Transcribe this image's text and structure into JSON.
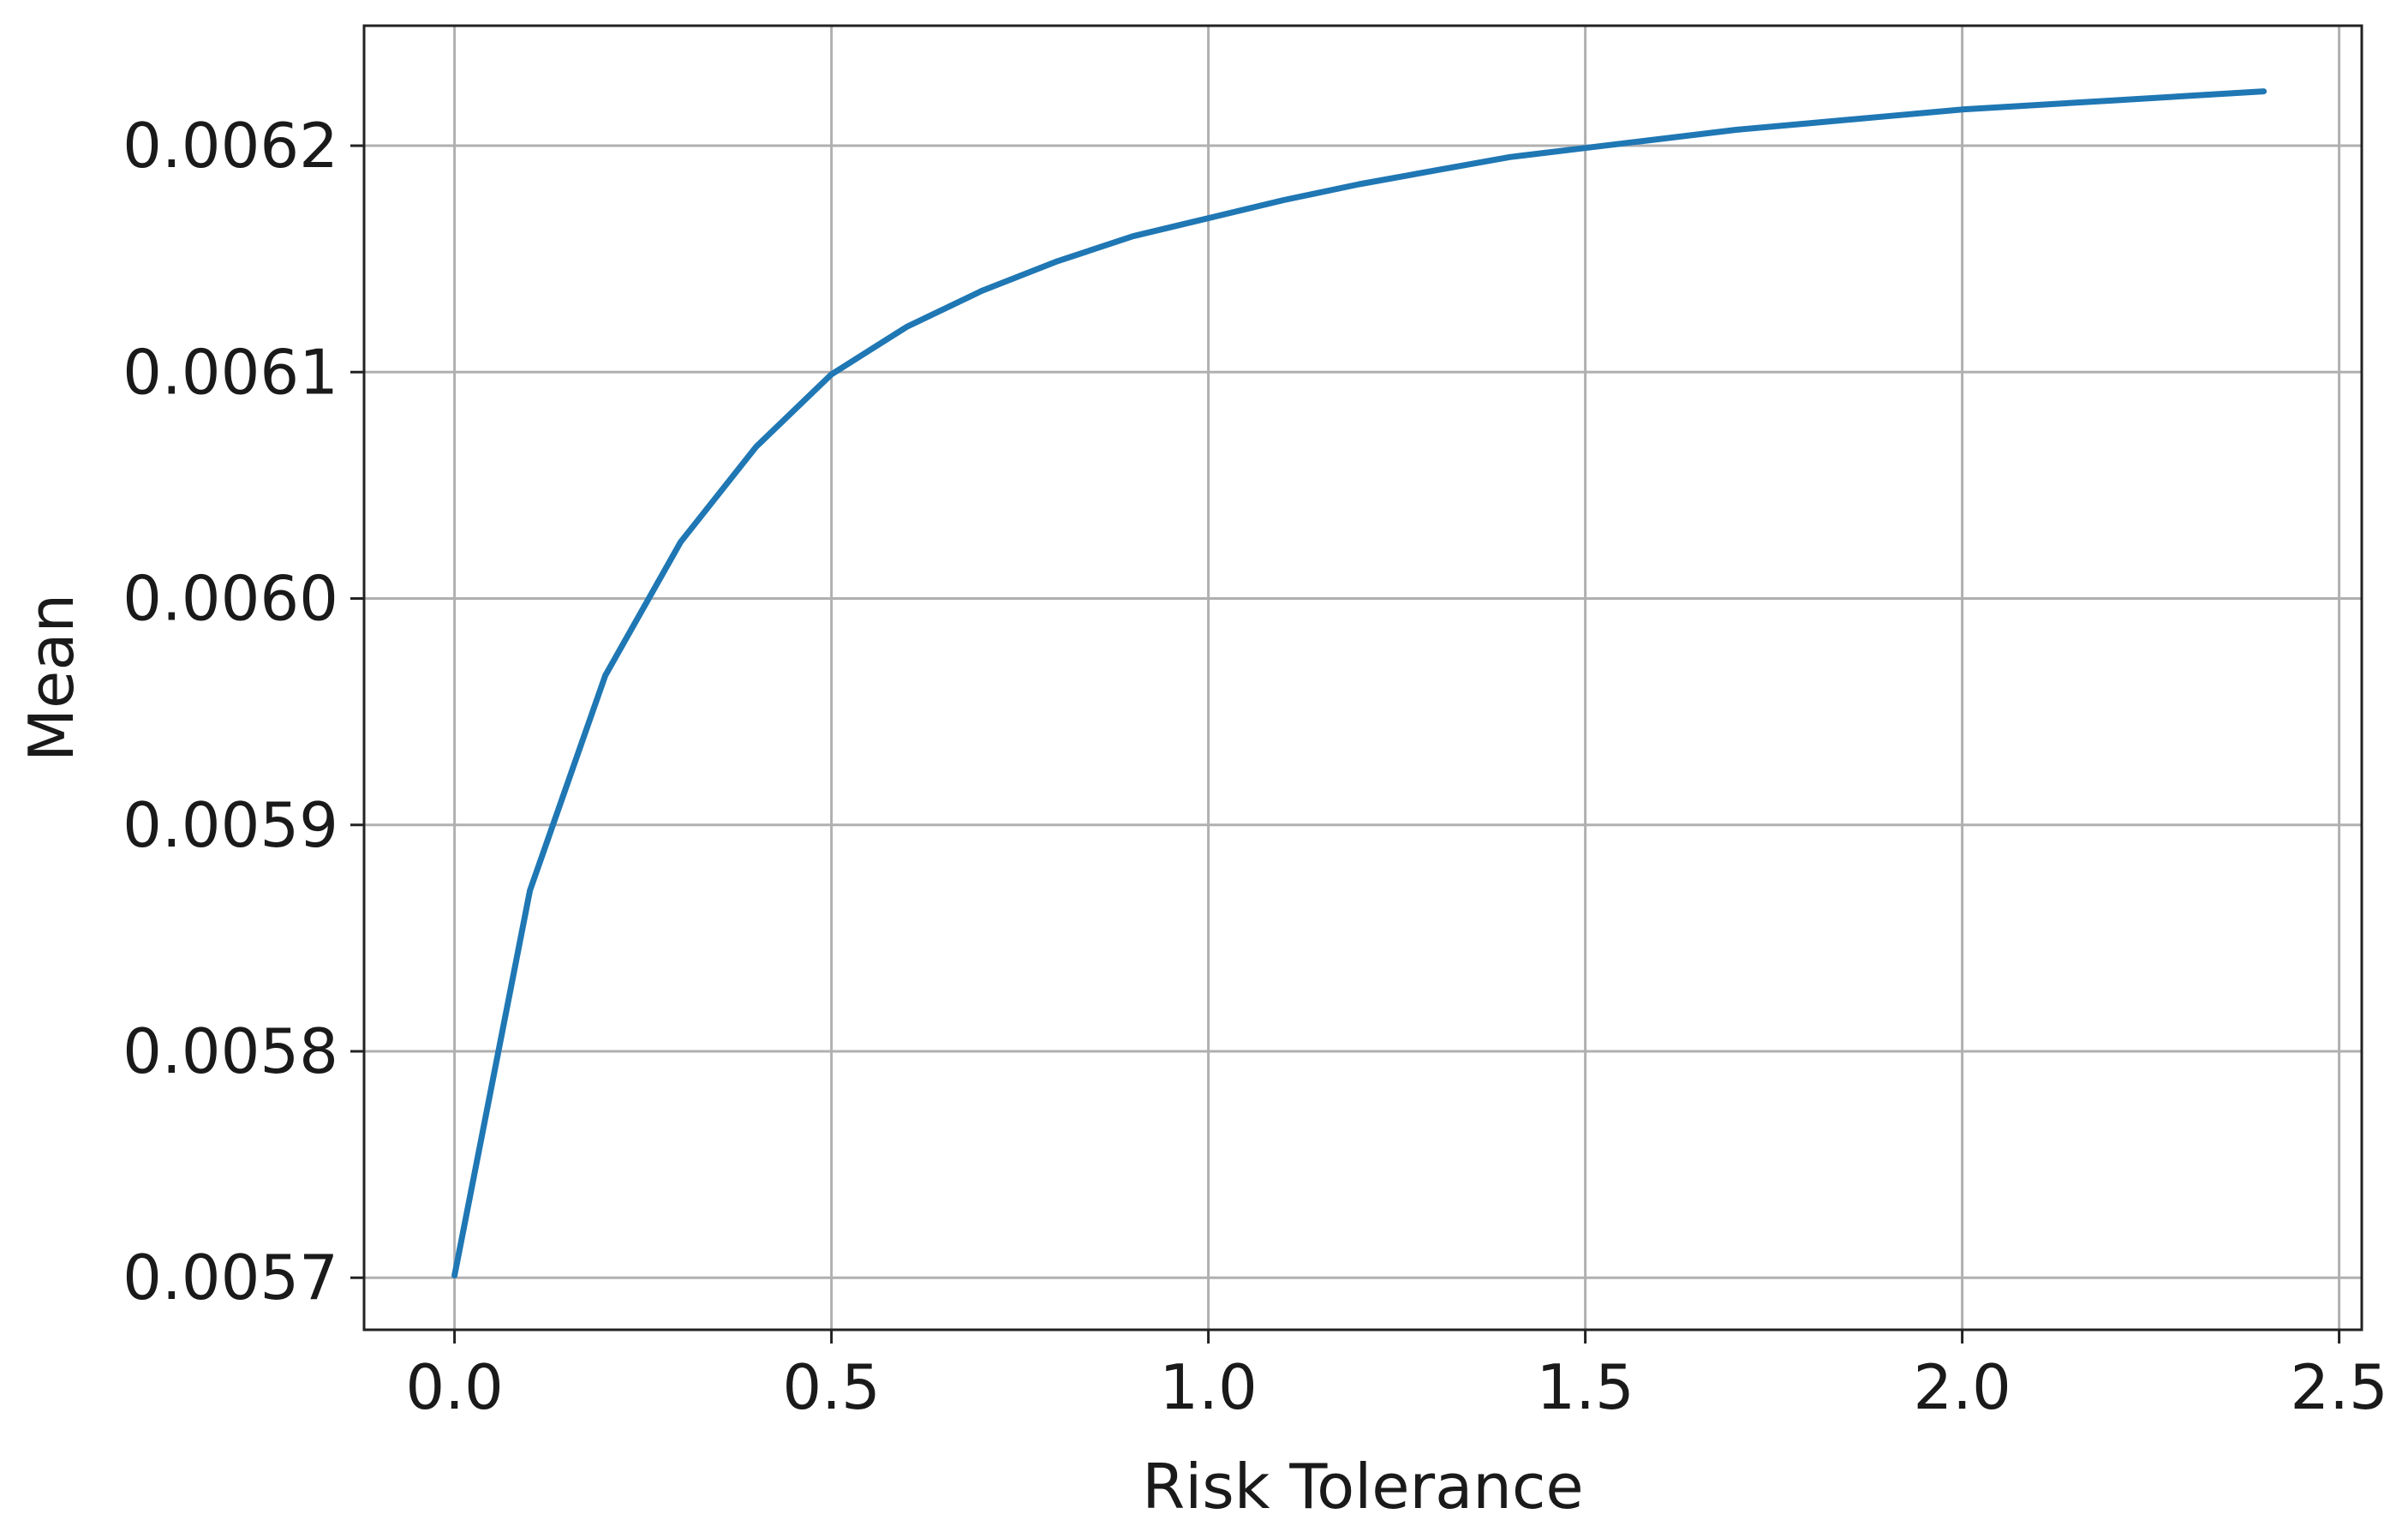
{
  "chart_data": {
    "type": "line",
    "title": "",
    "xlabel": "Risk Tolerance",
    "ylabel": "Mean",
    "xlim": [
      -0.12,
      2.53
    ],
    "ylim": [
      0.005677,
      0.006253
    ],
    "xticks": [
      0.0,
      0.5,
      1.0,
      1.5,
      2.0,
      2.5
    ],
    "xtick_labels": [
      "0.0",
      "0.5",
      "1.0",
      "1.5",
      "2.0",
      "2.5"
    ],
    "yticks": [
      0.0057,
      0.0058,
      0.0059,
      0.006,
      0.0061,
      0.0062
    ],
    "ytick_labels": [
      "0.0057",
      "0.0058",
      "0.0059",
      "0.0060",
      "0.0061",
      "0.0062"
    ],
    "grid": true,
    "legend": false,
    "series": [
      {
        "color": "#1f77b4",
        "x": [
          0.0,
          0.1,
          0.2,
          0.3,
          0.4,
          0.5,
          0.6,
          0.7,
          0.8,
          0.9,
          1.0,
          1.1,
          1.2,
          1.3,
          1.4,
          1.5,
          1.6,
          1.7,
          1.8,
          1.9,
          2.0,
          2.1,
          2.2,
          2.3,
          2.4
        ],
        "y": [
          0.005701,
          0.005871,
          0.005966,
          0.006025,
          0.006067,
          0.006099,
          0.00612,
          0.006136,
          0.006149,
          0.00616,
          0.006168,
          0.006176,
          0.006183,
          0.006189,
          0.006195,
          0.006199,
          0.006203,
          0.006207,
          0.00621,
          0.006213,
          0.006216,
          0.006218,
          0.00622,
          0.006222,
          0.006224
        ]
      }
    ]
  }
}
